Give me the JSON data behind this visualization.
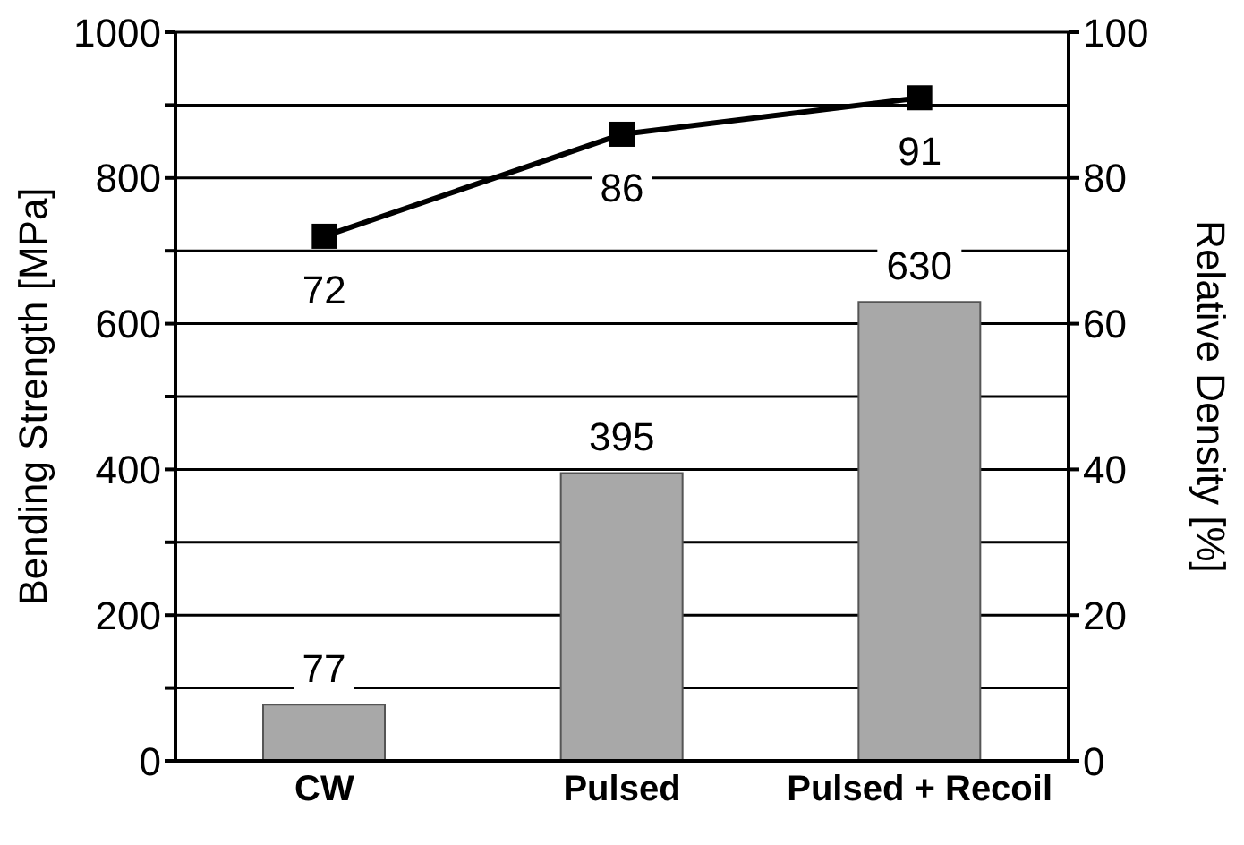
{
  "chart_data": {
    "type": "bar",
    "categories": [
      "CW",
      "Pulsed",
      "Pulsed + Recoil"
    ],
    "series": [
      {
        "color": "#a8a8a8",
        "values": [
          77,
          395,
          630
        ]
      },
      {
        "type": "line",
        "axis": "y2",
        "color": "#000000",
        "values": [
          72,
          86,
          91
        ]
      }
    ],
    "ylabel": "Bending Strength [MPa]",
    "y2label": "Relative Density [%]",
    "ylim": [
      0,
      1000
    ],
    "yticks": [
      0,
      {
        "value": 100,
        "label": null
      },
      200,
      {
        "value": 300,
        "label": null
      },
      400,
      {
        "value": 500,
        "label": null
      },
      600,
      {
        "value": 700,
        "label": null
      },
      800,
      {
        "value": 900,
        "label": null
      },
      1000
    ],
    "y2lim": [
      0,
      100
    ],
    "y2ticks": [
      0,
      20,
      40,
      60,
      80,
      100
    ],
    "grid": "y",
    "marker": "square",
    "line_style": "solid",
    "data_labels": true
  }
}
